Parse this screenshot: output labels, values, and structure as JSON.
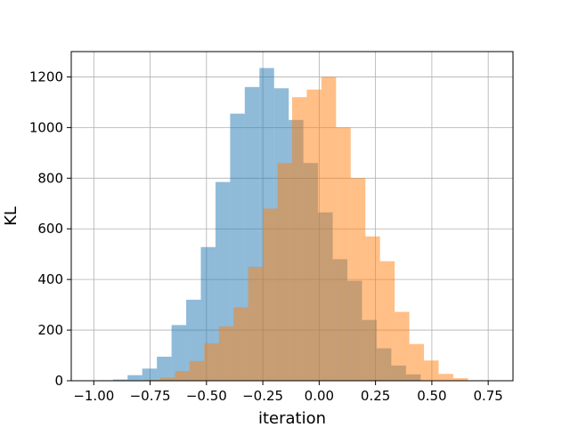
{
  "chart_data": {
    "type": "histogram",
    "xlabel": "iteration",
    "ylabel": "KL",
    "xlim": [
      -1.1,
      0.86
    ],
    "ylim": [
      0,
      1300
    ],
    "xticks": [
      -1.0,
      -0.75,
      -0.5,
      -0.25,
      0.0,
      0.25,
      0.5,
      0.75
    ],
    "xtick_labels": [
      "−1.00",
      "−0.75",
      "−0.50",
      "−0.25",
      "0.00",
      "0.25",
      "0.50",
      "0.75"
    ],
    "yticks": [
      0,
      200,
      400,
      600,
      800,
      1000,
      1200
    ],
    "ytick_labels": [
      "0",
      "200",
      "400",
      "600",
      "800",
      "1000",
      "1200"
    ],
    "grid": true,
    "series": [
      {
        "color": "#1f77b4",
        "opacity": 0.5,
        "bin_edges": [
          -0.98,
          -0.915,
          -0.85,
          -0.785,
          -0.72,
          -0.655,
          -0.59,
          -0.525,
          -0.46,
          -0.395,
          -0.33,
          -0.265,
          -0.2,
          -0.135,
          -0.07,
          -0.005,
          0.06,
          0.125,
          0.19,
          0.255,
          0.32,
          0.385,
          0.45
        ],
        "counts": [
          2,
          5,
          22,
          48,
          95,
          220,
          320,
          528,
          785,
          1055,
          1160,
          1235,
          1155,
          1030,
          860,
          665,
          480,
          395,
          240,
          128,
          60,
          25
        ]
      },
      {
        "color": "#ff7f0e",
        "opacity": 0.5,
        "bin_edges": [
          -0.77,
          -0.705,
          -0.64,
          -0.575,
          -0.51,
          -0.445,
          -0.38,
          -0.315,
          -0.25,
          -0.185,
          -0.12,
          -0.055,
          0.01,
          0.075,
          0.14,
          0.205,
          0.27,
          0.335,
          0.4,
          0.465,
          0.53,
          0.595,
          0.66,
          0.725
        ],
        "counts": [
          3,
          12,
          38,
          78,
          148,
          215,
          290,
          450,
          680,
          860,
          1120,
          1150,
          1200,
          1000,
          800,
          570,
          472,
          272,
          145,
          80,
          27,
          10,
          2
        ]
      }
    ]
  }
}
